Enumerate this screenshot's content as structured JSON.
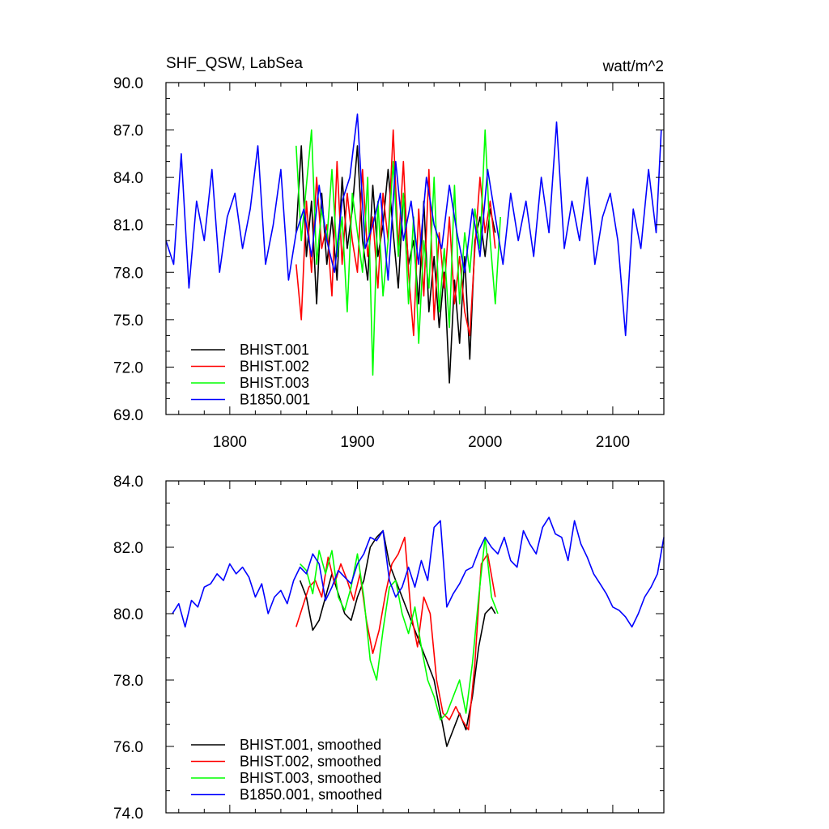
{
  "chart_data": [
    {
      "type": "line",
      "title": "SHF_QSW, LabSea",
      "units": "watt/m^2",
      "xlim": [
        1750,
        2140
      ],
      "ylim": [
        69.0,
        90.0
      ],
      "x_ticks": [
        1800,
        1900,
        2000,
        2100
      ],
      "y_ticks": [
        "69.0",
        "72.0",
        "75.0",
        "78.0",
        "81.0",
        "84.0",
        "87.0",
        "90.0"
      ],
      "grid": false,
      "legend_position": "bottom-left",
      "series": [
        {
          "name": "BHIST.001",
          "color": "#000000",
          "x": [
            1852,
            1856,
            1860,
            1864,
            1868,
            1872,
            1876,
            1880,
            1884,
            1888,
            1892,
            1896,
            1900,
            1904,
            1908,
            1912,
            1916,
            1920,
            1924,
            1928,
            1932,
            1936,
            1940,
            1944,
            1948,
            1952,
            1956,
            1960,
            1964,
            1968,
            1972,
            1976,
            1980,
            1984,
            1988,
            1992,
            1996,
            2000,
            2004,
            2008
          ],
          "y": [
            80.5,
            86.0,
            79.0,
            82.5,
            76.0,
            83.0,
            78.5,
            81.5,
            77.5,
            84.0,
            79.5,
            82.0,
            86.0,
            80.0,
            77.5,
            83.5,
            79.0,
            81.0,
            84.5,
            80.5,
            77.0,
            83.0,
            78.5,
            80.0,
            76.0,
            82.5,
            75.5,
            79.0,
            74.5,
            78.0,
            71.0,
            77.5,
            73.5,
            79.0,
            72.5,
            80.0,
            81.5,
            79.0,
            82.0,
            80.5
          ]
        },
        {
          "name": "BHIST.002",
          "color": "#ff0000",
          "x": [
            1852,
            1856,
            1860,
            1864,
            1868,
            1872,
            1876,
            1880,
            1884,
            1888,
            1892,
            1896,
            1900,
            1904,
            1908,
            1912,
            1916,
            1920,
            1924,
            1928,
            1932,
            1936,
            1940,
            1944,
            1948,
            1952,
            1956,
            1960,
            1964,
            1968,
            1972,
            1976,
            1980,
            1984,
            1988,
            1992,
            1996,
            2000,
            2004,
            2008
          ],
          "y": [
            78.5,
            75.0,
            82.5,
            78.0,
            84.0,
            79.5,
            81.0,
            76.5,
            85.0,
            78.5,
            83.0,
            80.0,
            78.0,
            84.5,
            79.0,
            81.5,
            77.0,
            83.0,
            80.0,
            87.0,
            79.5,
            85.0,
            78.0,
            74.0,
            82.0,
            76.5,
            84.5,
            75.0,
            80.5,
            77.0,
            81.5,
            76.0,
            79.0,
            75.5,
            74.0,
            79.5,
            84.0,
            80.5,
            82.5,
            79.5
          ]
        },
        {
          "name": "BHIST.003",
          "color": "#00ff00",
          "x": [
            1852,
            1856,
            1860,
            1864,
            1868,
            1872,
            1876,
            1880,
            1884,
            1888,
            1892,
            1896,
            1900,
            1904,
            1908,
            1912,
            1916,
            1920,
            1924,
            1928,
            1932,
            1936,
            1940,
            1944,
            1948,
            1952,
            1956,
            1960,
            1964,
            1968,
            1972,
            1976,
            1980,
            1984,
            1988,
            1992,
            1996,
            2000,
            2004,
            2008,
            2012
          ],
          "y": [
            86.0,
            80.0,
            83.5,
            87.0,
            78.5,
            82.0,
            80.0,
            84.5,
            79.0,
            81.5,
            75.5,
            83.0,
            80.5,
            78.0,
            84.0,
            71.5,
            82.5,
            76.5,
            80.0,
            85.0,
            79.0,
            83.0,
            76.0,
            81.5,
            73.5,
            80.0,
            77.0,
            84.0,
            75.5,
            79.5,
            74.5,
            83.5,
            76.0,
            80.5,
            78.0,
            82.0,
            79.5,
            87.0,
            80.0,
            76.0,
            81.5
          ]
        },
        {
          "name": "B1850.001",
          "color": "#0000ff",
          "x": [
            1750,
            1756,
            1762,
            1768,
            1774,
            1780,
            1786,
            1792,
            1798,
            1804,
            1810,
            1816,
            1822,
            1828,
            1834,
            1840,
            1846,
            1852,
            1858,
            1864,
            1870,
            1876,
            1882,
            1888,
            1894,
            1900,
            1906,
            1912,
            1918,
            1924,
            1930,
            1936,
            1942,
            1948,
            1954,
            1960,
            1966,
            1972,
            1978,
            1984,
            1990,
            1996,
            2002,
            2008,
            2014,
            2020,
            2026,
            2032,
            2038,
            2044,
            2050,
            2056,
            2062,
            2068,
            2074,
            2080,
            2086,
            2092,
            2098,
            2104,
            2110,
            2116,
            2122,
            2128,
            2134,
            2138
          ],
          "y": [
            80.0,
            78.5,
            85.5,
            77.0,
            82.5,
            80.0,
            84.5,
            78.0,
            81.5,
            83.0,
            79.5,
            82.0,
            86.0,
            78.5,
            81.0,
            84.5,
            77.5,
            80.5,
            82.0,
            79.0,
            83.5,
            80.0,
            78.0,
            82.5,
            84.0,
            88.0,
            79.5,
            81.0,
            83.0,
            77.5,
            85.0,
            80.0,
            82.5,
            78.5,
            84.0,
            81.0,
            79.5,
            83.5,
            80.5,
            78.0,
            82.0,
            79.0,
            84.5,
            81.5,
            78.5,
            83.0,
            80.0,
            82.5,
            79.0,
            84.0,
            80.5,
            87.5,
            79.5,
            82.5,
            80.0,
            84.0,
            78.5,
            81.5,
            83.0,
            80.0,
            74.0,
            82.0,
            79.5,
            84.5,
            80.5,
            87.0
          ]
        }
      ]
    },
    {
      "type": "line",
      "xlim": [
        1750,
        2140
      ],
      "ylim": [
        74.0,
        84.0
      ],
      "x_ticks": [
        1800,
        1900,
        2000,
        2100
      ],
      "y_ticks": [
        "74.0",
        "76.0",
        "78.0",
        "80.0",
        "82.0",
        "84.0"
      ],
      "grid": false,
      "legend_position": "bottom-left",
      "series": [
        {
          "name": "BHIST.001, smoothed",
          "color": "#000000",
          "x": [
            1855,
            1860,
            1865,
            1870,
            1875,
            1880,
            1885,
            1890,
            1895,
            1900,
            1905,
            1910,
            1915,
            1920,
            1925,
            1930,
            1935,
            1940,
            1945,
            1950,
            1955,
            1960,
            1965,
            1970,
            1975,
            1980,
            1985,
            1990,
            1995,
            2000,
            2005,
            2008
          ],
          "y": [
            81.0,
            80.5,
            79.5,
            79.8,
            80.5,
            81.2,
            80.6,
            80.0,
            79.8,
            80.5,
            81.0,
            82.0,
            82.3,
            82.5,
            81.5,
            81.0,
            80.5,
            80.0,
            79.5,
            79.0,
            78.5,
            78.0,
            77.0,
            76.0,
            76.5,
            77.0,
            76.5,
            77.5,
            79.0,
            80.0,
            80.2,
            80.0
          ]
        },
        {
          "name": "BHIST.002, smoothed",
          "color": "#ff0000",
          "x": [
            1852,
            1857,
            1862,
            1867,
            1872,
            1877,
            1882,
            1887,
            1892,
            1897,
            1902,
            1907,
            1912,
            1917,
            1922,
            1927,
            1932,
            1937,
            1942,
            1947,
            1952,
            1957,
            1962,
            1967,
            1972,
            1977,
            1982,
            1987,
            1992,
            1997,
            2002,
            2008
          ],
          "y": [
            79.6,
            80.2,
            80.8,
            81.0,
            80.5,
            81.7,
            80.9,
            81.5,
            81.0,
            80.4,
            81.2,
            79.8,
            78.8,
            79.5,
            80.6,
            81.5,
            81.8,
            82.3,
            80.0,
            79.0,
            80.5,
            80.0,
            78.0,
            77.0,
            76.8,
            77.2,
            76.8,
            76.5,
            78.5,
            81.5,
            81.8,
            80.5
          ]
        },
        {
          "name": "BHIST.003, smoothed",
          "color": "#00ff00",
          "x": [
            1855,
            1860,
            1865,
            1870,
            1875,
            1880,
            1885,
            1890,
            1895,
            1900,
            1905,
            1910,
            1915,
            1920,
            1925,
            1930,
            1935,
            1940,
            1945,
            1950,
            1955,
            1960,
            1965,
            1970,
            1975,
            1980,
            1985,
            1990,
            1995,
            2000,
            2005,
            2010
          ],
          "y": [
            81.5,
            81.3,
            80.6,
            81.9,
            81.2,
            81.9,
            80.5,
            80.1,
            80.8,
            81.8,
            80.5,
            78.6,
            78.0,
            79.5,
            80.8,
            81.0,
            80.0,
            79.4,
            80.2,
            79.0,
            78.0,
            77.5,
            76.8,
            77.0,
            77.5,
            78.0,
            77.0,
            78.5,
            80.5,
            82.3,
            80.5,
            80.0
          ]
        },
        {
          "name": "B1850.001, smoothed",
          "color": "#0000ff",
          "x": [
            1755,
            1760,
            1765,
            1770,
            1775,
            1780,
            1785,
            1790,
            1795,
            1800,
            1805,
            1810,
            1815,
            1820,
            1825,
            1830,
            1835,
            1840,
            1845,
            1850,
            1855,
            1860,
            1865,
            1870,
            1875,
            1880,
            1885,
            1890,
            1895,
            1900,
            1905,
            1910,
            1915,
            1920,
            1925,
            1930,
            1935,
            1940,
            1945,
            1950,
            1955,
            1960,
            1965,
            1970,
            1975,
            1980,
            1985,
            1990,
            1995,
            2000,
            2005,
            2010,
            2015,
            2020,
            2025,
            2030,
            2035,
            2040,
            2045,
            2050,
            2055,
            2060,
            2065,
            2070,
            2075,
            2080,
            2085,
            2090,
            2095,
            2100,
            2105,
            2110,
            2115,
            2120,
            2125,
            2130,
            2135,
            2140
          ],
          "y": [
            80.0,
            80.3,
            79.6,
            80.4,
            80.2,
            80.8,
            80.9,
            81.2,
            81.0,
            81.5,
            81.2,
            81.4,
            81.1,
            80.5,
            80.9,
            80.0,
            80.5,
            80.7,
            80.3,
            81.0,
            81.4,
            81.2,
            81.8,
            81.5,
            80.4,
            80.8,
            81.3,
            81.1,
            80.9,
            81.5,
            81.8,
            82.3,
            82.2,
            82.5,
            81.0,
            80.5,
            80.8,
            81.4,
            80.8,
            81.6,
            81.0,
            82.6,
            82.8,
            80.2,
            80.6,
            80.9,
            81.3,
            81.4,
            81.9,
            82.3,
            82.0,
            81.8,
            82.3,
            81.6,
            81.4,
            82.5,
            82.1,
            81.8,
            82.6,
            82.9,
            82.4,
            82.3,
            81.6,
            82.8,
            82.1,
            81.7,
            81.2,
            80.9,
            80.6,
            80.2,
            80.1,
            79.9,
            79.6,
            80.0,
            80.5,
            80.8,
            81.2,
            82.3
          ]
        }
      ]
    }
  ]
}
